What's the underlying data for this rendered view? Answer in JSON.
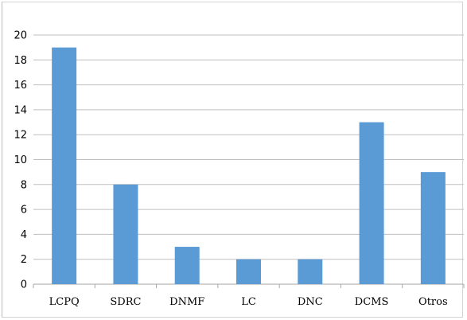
{
  "chart_data": {
    "type": "bar",
    "categories": [
      "LCPQ",
      "SDRC",
      "DNMF",
      "LC",
      "DNC",
      "DCMS",
      "Otros"
    ],
    "values": [
      19,
      8,
      3,
      2,
      2,
      13,
      9
    ],
    "ylim": [
      0,
      20
    ],
    "yticks": [
      "0",
      "2",
      "4",
      "6",
      "8",
      "10",
      "12",
      "14",
      "16",
      "18",
      "20"
    ],
    "grid": true,
    "legend": "none",
    "bar_color": "#5b9bd5",
    "grid_color": "#bfbfbf"
  }
}
